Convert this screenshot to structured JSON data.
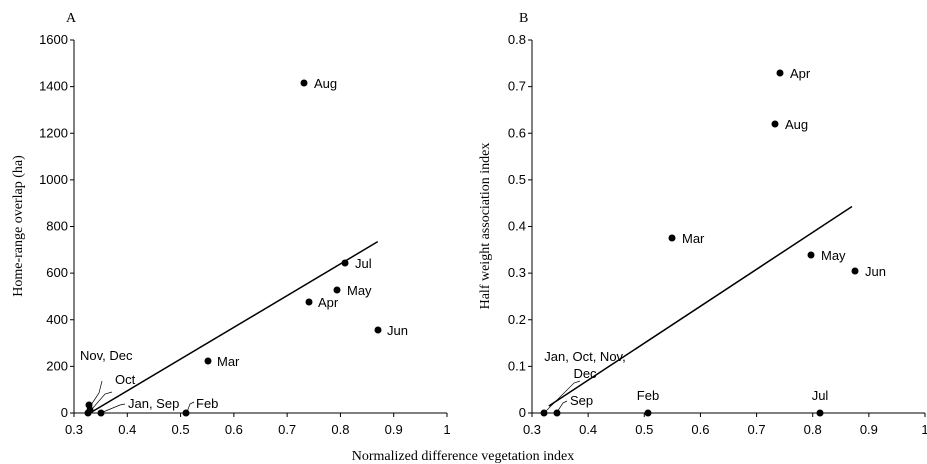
{
  "chart_data": [
    {
      "panel_label": "A",
      "type": "scatter",
      "xlabel": "",
      "ylabel": "Home-range overlap (ha)",
      "xlim": [
        0.3,
        1.0
      ],
      "ylim": [
        0,
        1600
      ],
      "x_ticks": [
        "0.3",
        "0.4",
        "0.5",
        "0.6",
        "0.7",
        "0.8",
        "0.9",
        "1"
      ],
      "y_ticks": [
        "0",
        "200",
        "400",
        "600",
        "800",
        "1000",
        "1200",
        "1400",
        "1600"
      ],
      "points": [
        {
          "label": "Aug",
          "x": 0.733,
          "y": 1415
        },
        {
          "label": "Jul",
          "x": 0.81,
          "y": 645
        },
        {
          "label": "May",
          "x": 0.795,
          "y": 525
        },
        {
          "label": "Apr",
          "x": 0.742,
          "y": 475
        },
        {
          "label": "Jun",
          "x": 0.872,
          "y": 355
        },
        {
          "label": "Mar",
          "x": 0.551,
          "y": 225
        },
        {
          "label": "Feb",
          "x": 0.508,
          "y": 0
        },
        {
          "label": "Nov, Dec",
          "x": 0.328,
          "y": 35
        },
        {
          "label": "Oct",
          "x": 0.33,
          "y": 12
        },
        {
          "label": "Jan, Sep",
          "x": 0.35,
          "y": 0
        },
        {
          "label": "",
          "x": 0.327,
          "y": 0
        }
      ],
      "trendline": {
        "x": [
          0.33,
          0.87
        ],
        "y": [
          0,
          735
        ]
      }
    },
    {
      "panel_label": "B",
      "type": "scatter",
      "xlabel": "Normalized difference vegetation index",
      "ylabel": "Half weight association index",
      "xlim": [
        0.3,
        1.0
      ],
      "ylim": [
        0,
        0.8
      ],
      "x_ticks": [
        "0.3",
        "0.4",
        "0.5",
        "0.6",
        "0.7",
        "0.8",
        "0.9",
        "1"
      ],
      "y_ticks": [
        "0",
        "0.1",
        "0.2",
        "0.3",
        "0.4",
        "0.5",
        "0.6",
        "0.7",
        "0.8"
      ],
      "points": [
        {
          "label": "Apr",
          "x": 0.742,
          "y": 0.73
        },
        {
          "label": "Aug",
          "x": 0.733,
          "y": 0.62
        },
        {
          "label": "Mar",
          "x": 0.551,
          "y": 0.375
        },
        {
          "label": "May",
          "x": 0.795,
          "y": 0.34
        },
        {
          "label": "Jun",
          "x": 0.872,
          "y": 0.305
        },
        {
          "label": "Feb",
          "x": 0.508,
          "y": 0
        },
        {
          "label": "Jul",
          "x": 0.81,
          "y": 0
        },
        {
          "label": "Sep",
          "x": 0.35,
          "y": 0
        },
        {
          "label": "Jan, Oct, Nov, Dec",
          "x": 0.328,
          "y": 0
        }
      ],
      "trendline": {
        "x": [
          0.33,
          0.87
        ],
        "y": [
          0.015,
          0.443
        ]
      }
    }
  ]
}
